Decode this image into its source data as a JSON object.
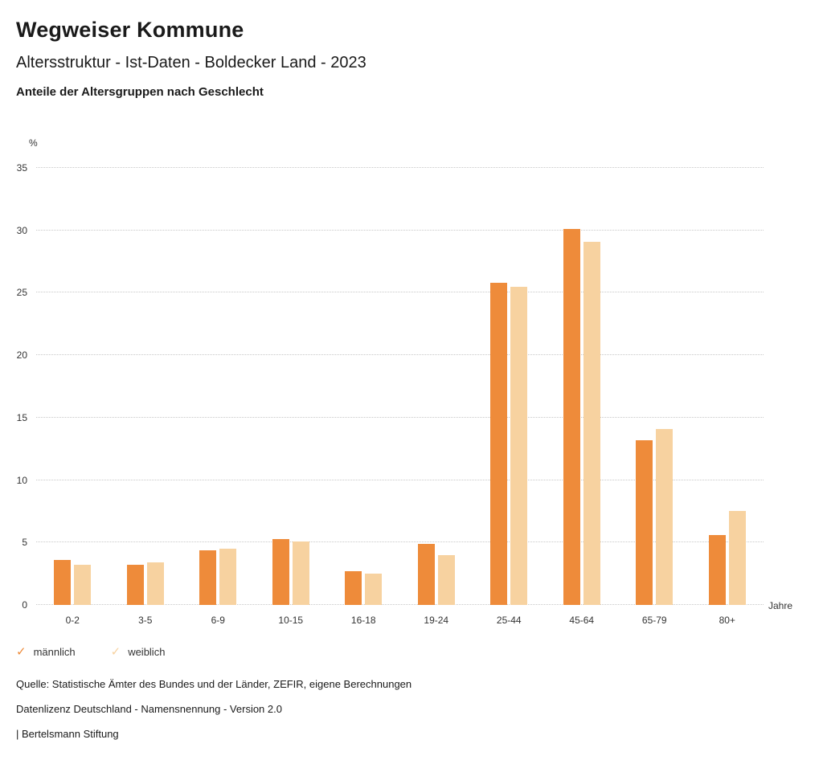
{
  "header": {
    "title": "Wegweiser Kommune",
    "subtitle": "Altersstruktur - Ist-Daten - Boldecker Land - 2023",
    "chart_heading": "Anteile der Altersgruppen nach Geschlecht"
  },
  "chart_data": {
    "type": "bar",
    "title": "Anteile der Altersgruppen nach Geschlecht",
    "categories": [
      "0-2",
      "3-5",
      "6-9",
      "10-15",
      "16-18",
      "19-24",
      "25-44",
      "45-64",
      "65-79",
      "80+"
    ],
    "series": [
      {
        "name": "männlich",
        "color": "#EE8B3A",
        "values": [
          3.6,
          3.2,
          4.4,
          5.3,
          2.7,
          4.9,
          25.8,
          30.1,
          13.2,
          5.6
        ]
      },
      {
        "name": "weiblich",
        "color": "#F7D2A0",
        "values": [
          3.2,
          3.4,
          4.5,
          5.1,
          2.5,
          4.0,
          25.5,
          29.1,
          14.1,
          7.5
        ]
      }
    ],
    "xlabel": "Jahre",
    "ylabel": "%",
    "ylim": [
      0,
      35
    ],
    "yticks": [
      0,
      5,
      10,
      15,
      20,
      25,
      30,
      35
    ],
    "grid": true,
    "legend_position": "bottom"
  },
  "legend": {
    "items": [
      {
        "label": "männlich",
        "icon": "✓",
        "color": "#EE8B3A"
      },
      {
        "label": "weiblich",
        "icon": "✓",
        "color": "#F7D2A0"
      }
    ]
  },
  "footer": {
    "source": "Quelle: Statistische Ämter des Bundes und der Länder, ZEFIR, eigene Berechnungen",
    "license": "Datenlizenz Deutschland - Namensnennung - Version 2.0",
    "attribution": "| Bertelsmann Stiftung"
  }
}
